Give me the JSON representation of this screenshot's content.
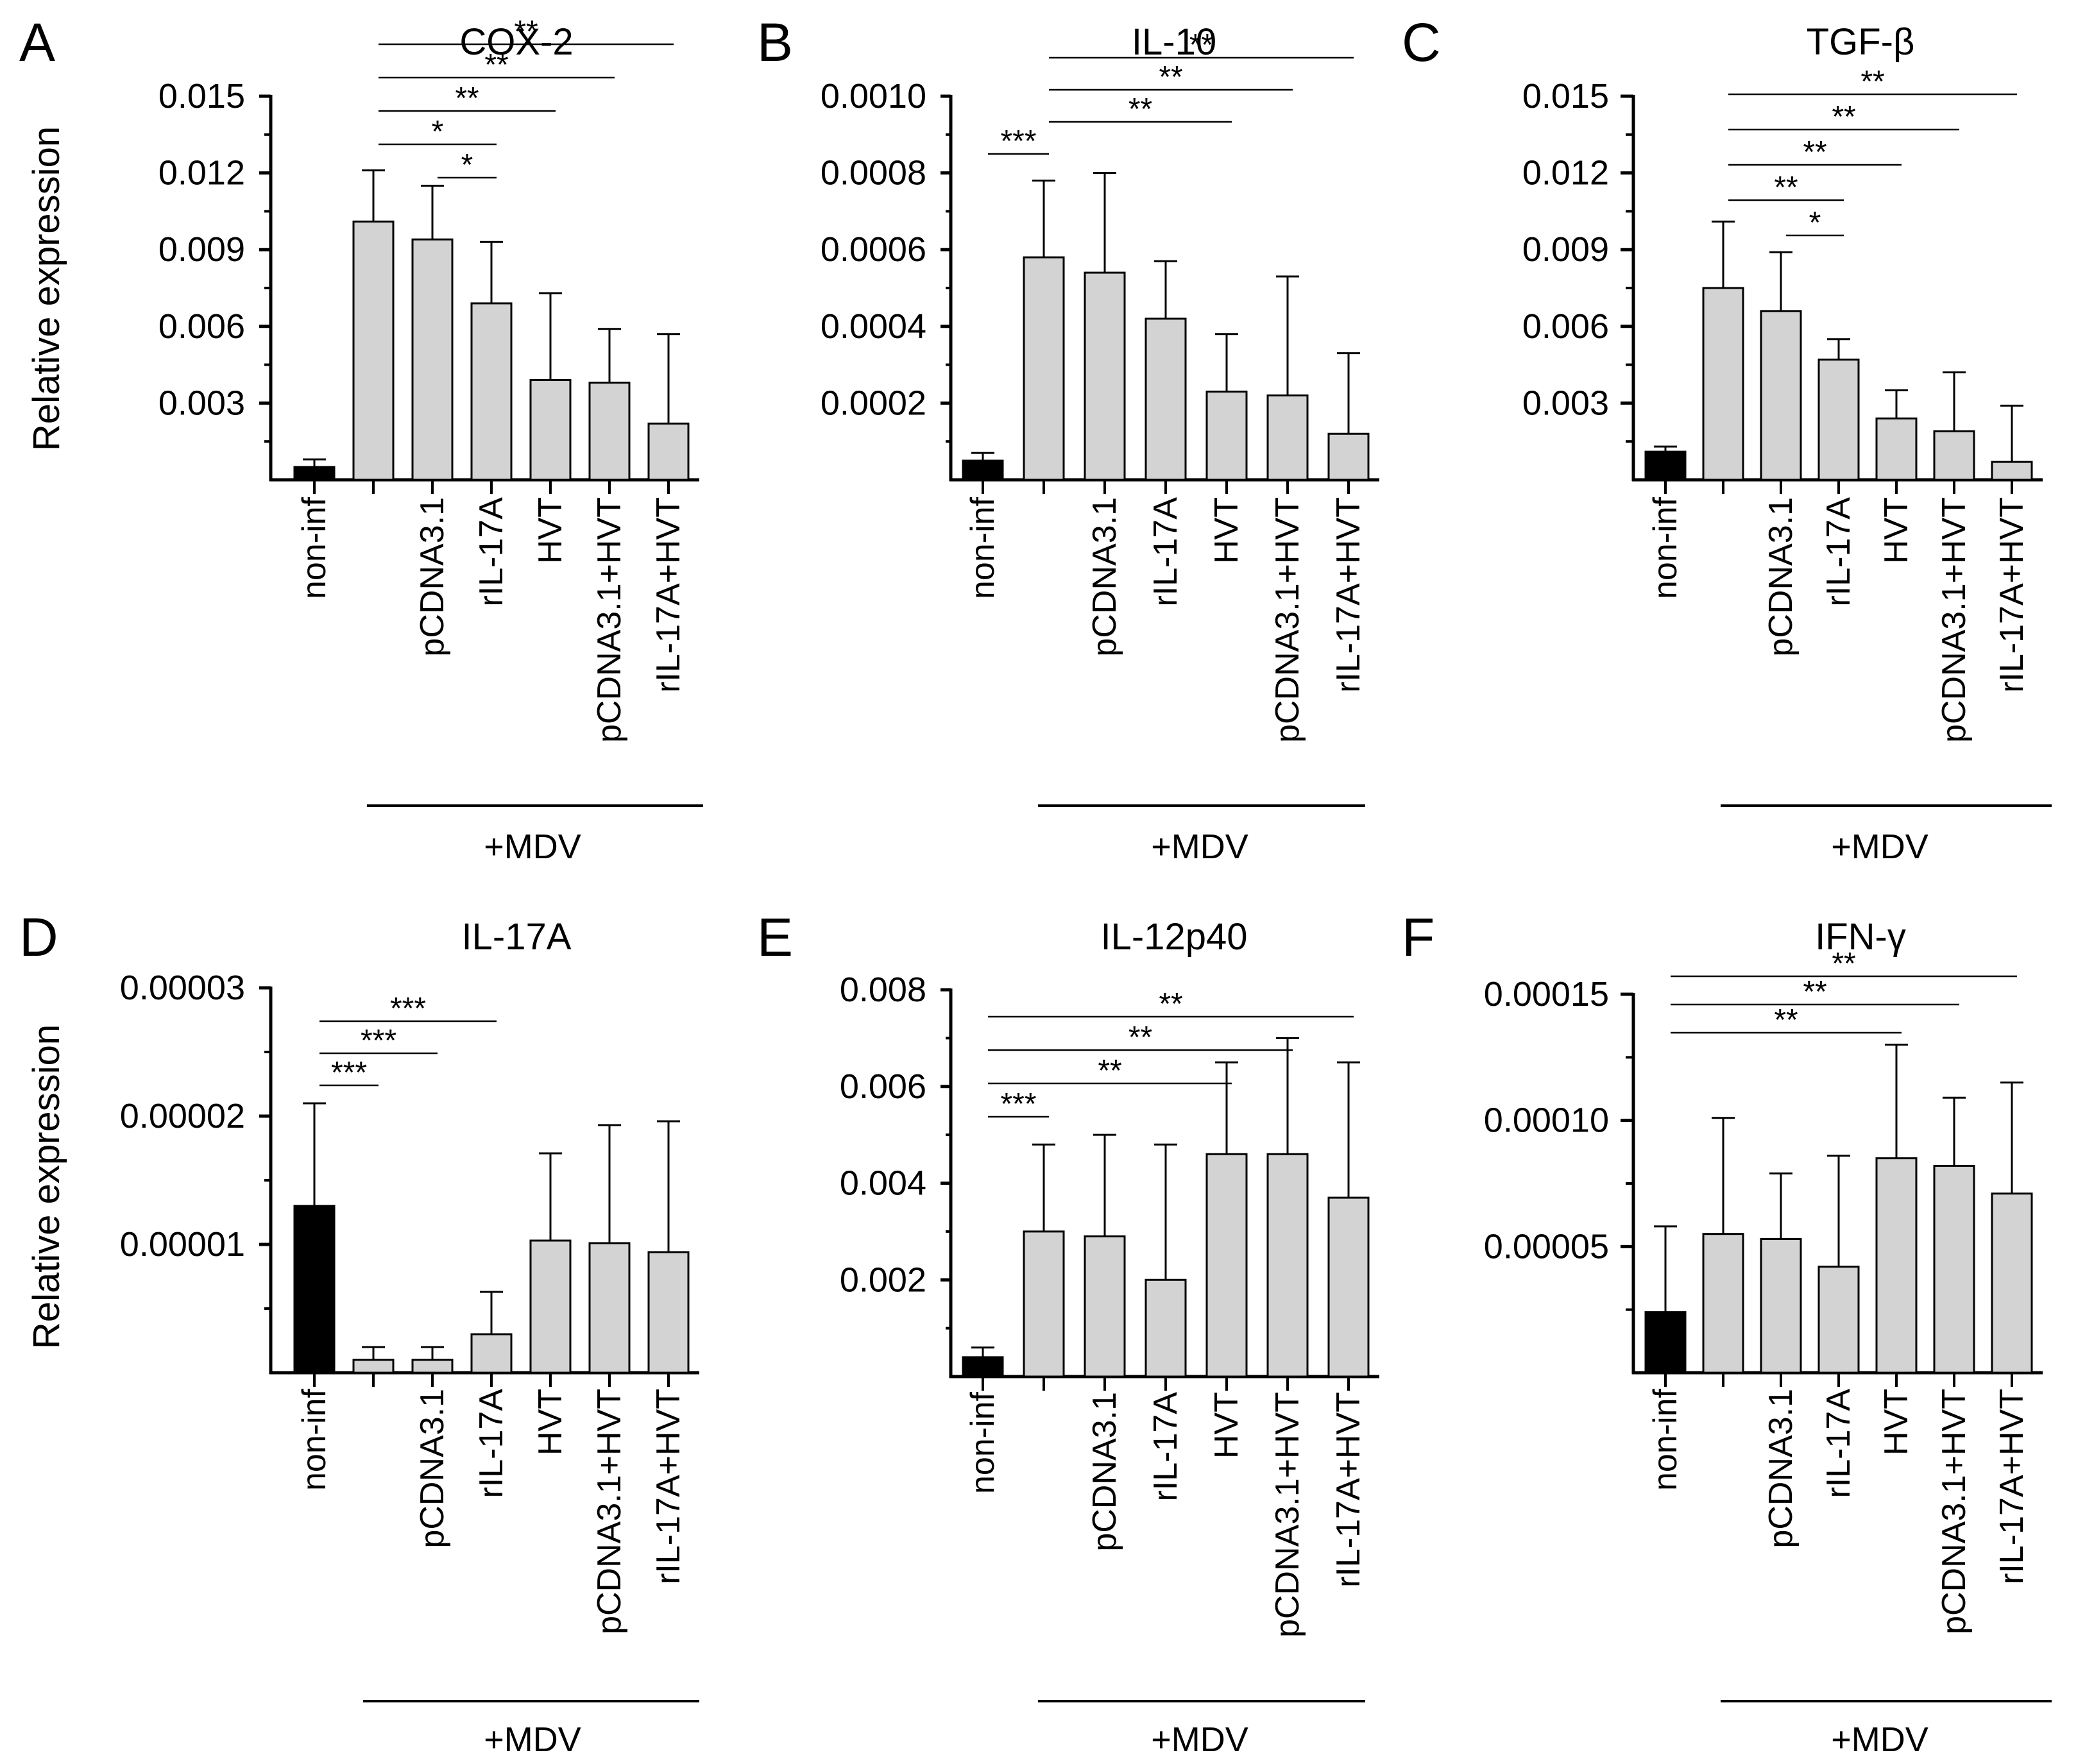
{
  "figure": {
    "common": {
      "ylabel": "Relative expression",
      "group_label": "+MDV",
      "categories": [
        "non-inf",
        "pCDNA3.1",
        "rIL-17A",
        "HVT",
        "pCDNA3.1+HVT",
        "rIL-17A+HVT"
      ],
      "colors": {
        "control": "#000000",
        "treatment": "#d3d3d3",
        "outline": "#000000"
      }
    }
  },
  "chart_data": [
    {
      "panel": "A",
      "type": "bar",
      "title": "COX-2",
      "ylabel": "Relative expression",
      "group_label": "+MDV",
      "categories": [
        "non-inf",
        "",
        "pCDNA3.1",
        "rIL-17A",
        "HVT",
        "pCDNA3.1+HVT",
        "rIL-17A+HVT"
      ],
      "values": [
        0.0005,
        0.0101,
        0.0094,
        0.0069,
        0.0039,
        0.0038,
        0.0022
      ],
      "errors": [
        0.0003,
        0.002,
        0.0021,
        0.0024,
        0.0034,
        0.0021,
        0.0035
      ],
      "ylim": [
        0,
        0.015
      ],
      "yticks": [
        0.003,
        0.006,
        0.009,
        0.012,
        0.015
      ],
      "ytick_labels": [
        "0.003",
        "0.006",
        "0.009",
        "0.012",
        "0.015"
      ],
      "significance": [
        {
          "from": 2,
          "to": 3,
          "label": "*"
        },
        {
          "from": 1,
          "to": 3,
          "label": "*"
        },
        {
          "from": 1,
          "to": 4,
          "label": "**"
        },
        {
          "from": 1,
          "to": 5,
          "label": "**"
        },
        {
          "from": 1,
          "to": 6,
          "label": "**"
        }
      ]
    },
    {
      "panel": "B",
      "type": "bar",
      "title": "IL-10",
      "ylabel": "",
      "group_label": "+MDV",
      "categories": [
        "non-inf",
        "",
        "pCDNA3.1",
        "rIL-17A",
        "HVT",
        "pCDNA3.1+HVT",
        "rIL-17A+HVT"
      ],
      "values": [
        5e-05,
        0.00058,
        0.00054,
        0.00042,
        0.00023,
        0.00022,
        0.00012
      ],
      "errors": [
        2e-05,
        0.0002,
        0.00026,
        0.00015,
        0.00015,
        0.00031,
        0.00021
      ],
      "ylim": [
        0,
        0.001
      ],
      "yticks": [
        0.0002,
        0.0004,
        0.0006,
        0.0008,
        0.001
      ],
      "ytick_labels": [
        "0.0002",
        "0.0004",
        "0.0006",
        "0.0008",
        "0.0010"
      ],
      "significance": [
        {
          "from": 0,
          "to": 1,
          "label": "***"
        },
        {
          "from": 1,
          "to": 4,
          "label": "**"
        },
        {
          "from": 1,
          "to": 5,
          "label": "**"
        },
        {
          "from": 1,
          "to": 6,
          "label": "**"
        }
      ]
    },
    {
      "panel": "C",
      "type": "bar",
      "title": "TGF-β",
      "ylabel": "",
      "group_label": "+MDV",
      "categories": [
        "non-inf",
        "",
        "pCDNA3.1",
        "rIL-17A",
        "HVT",
        "pCDNA3.1+HVT",
        "rIL-17A+HVT"
      ],
      "values": [
        0.0011,
        0.0075,
        0.0066,
        0.0047,
        0.0024,
        0.0019,
        0.0007
      ],
      "errors": [
        0.0002,
        0.0026,
        0.0023,
        0.0008,
        0.0011,
        0.0023,
        0.0022
      ],
      "ylim": [
        0,
        0.015
      ],
      "yticks": [
        0.003,
        0.006,
        0.009,
        0.012,
        0.015
      ],
      "ytick_labels": [
        "0.003",
        "0.006",
        "0.009",
        "0.012",
        "0.015"
      ],
      "significance": [
        {
          "from": 2,
          "to": 3,
          "label": "*"
        },
        {
          "from": 1,
          "to": 3,
          "label": "**"
        },
        {
          "from": 1,
          "to": 4,
          "label": "**"
        },
        {
          "from": 1,
          "to": 5,
          "label": "**"
        },
        {
          "from": 1,
          "to": 6,
          "label": "**"
        }
      ]
    },
    {
      "panel": "D",
      "type": "bar",
      "title": "IL-17A",
      "ylabel": "Relative expression",
      "group_label": "+MDV",
      "categories": [
        "non-inf",
        "",
        "pCDNA3.1",
        "rIL-17A",
        "HVT",
        "pCDNA3.1+HVT",
        "rIL-17A+HVT"
      ],
      "values": [
        1.3e-05,
        1e-06,
        1e-06,
        3e-06,
        1.03e-05,
        1.01e-05,
        9.4e-06
      ],
      "errors": [
        8e-06,
        1e-06,
        1e-06,
        3.3e-06,
        6.8e-06,
        9.2e-06,
        1.02e-05
      ],
      "ylim": [
        0,
        3e-05
      ],
      "yticks": [
        1e-05,
        2e-05,
        3e-05
      ],
      "ytick_labels": [
        "0.00001",
        "0.00002",
        "0.00003"
      ],
      "significance": [
        {
          "from": 0,
          "to": 1,
          "label": "***"
        },
        {
          "from": 0,
          "to": 2,
          "label": "***"
        },
        {
          "from": 0,
          "to": 3,
          "label": "***"
        }
      ]
    },
    {
      "panel": "E",
      "type": "bar",
      "title": "IL-12p40",
      "ylabel": "",
      "group_label": "+MDV",
      "categories": [
        "non-inf",
        "",
        "pCDNA3.1",
        "rIL-17A",
        "HVT",
        "pCDNA3.1+HVT",
        "rIL-17A+HVT"
      ],
      "values": [
        0.0004,
        0.003,
        0.0029,
        0.002,
        0.0046,
        0.0046,
        0.0037
      ],
      "errors": [
        0.0002,
        0.0018,
        0.0021,
        0.0028,
        0.0019,
        0.0024,
        0.0028
      ],
      "ylim": [
        0,
        0.008
      ],
      "yticks": [
        0.002,
        0.004,
        0.006,
        0.008
      ],
      "ytick_labels": [
        "0.002",
        "0.004",
        "0.006",
        "0.008"
      ],
      "significance": [
        {
          "from": 0,
          "to": 1,
          "label": "***"
        },
        {
          "from": 0,
          "to": 4,
          "label": "**"
        },
        {
          "from": 0,
          "to": 5,
          "label": "**"
        },
        {
          "from": 0,
          "to": 6,
          "label": "**"
        }
      ]
    },
    {
      "panel": "F",
      "type": "bar",
      "title": "IFN-γ",
      "ylabel": "",
      "group_label": "+MDV",
      "categories": [
        "non-inf",
        "",
        "pCDNA3.1",
        "rIL-17A",
        "HVT",
        "pCDNA3.1+HVT",
        "rIL-17A+HVT"
      ],
      "values": [
        2.4e-05,
        5.5e-05,
        5.3e-05,
        4.2e-05,
        8.5e-05,
        8.2e-05,
        7.1e-05
      ],
      "errors": [
        3.4e-05,
        4.6e-05,
        2.6e-05,
        4.4e-05,
        4.5e-05,
        2.7e-05,
        4.4e-05
      ],
      "ylim": [
        0,
        0.00015
      ],
      "yticks": [
        5e-05,
        0.0001,
        0.00015
      ],
      "ytick_labels": [
        "0.00005",
        "0.00010",
        "0.00015"
      ],
      "significance": [
        {
          "from": 0,
          "to": 4,
          "label": "**"
        },
        {
          "from": 0,
          "to": 5,
          "label": "**"
        },
        {
          "from": 0,
          "to": 6,
          "label": "**"
        }
      ]
    }
  ]
}
